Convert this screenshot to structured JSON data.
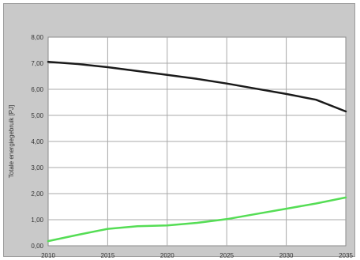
{
  "chart_data": {
    "type": "line",
    "title": "",
    "xlabel": "",
    "ylabel": "Totale energiegebruik [PJ]",
    "x": [
      2010,
      2015,
      2020,
      2025,
      2030,
      2035
    ],
    "x_tick_labels": [
      "2010",
      "2015",
      "2020",
      "2025",
      "2030",
      "2035"
    ],
    "y_tick_labels": [
      "0,00",
      "1,00",
      "2,00",
      "3,00",
      "4,00",
      "5,00",
      "6,00",
      "7,00",
      "8,00"
    ],
    "xlim": [
      2010,
      2035
    ],
    "ylim": [
      0,
      8
    ],
    "grid": true,
    "legend": "none",
    "series": [
      {
        "color": "#1a1a1a",
        "points": [
          [
            2010,
            7.05
          ],
          [
            2012.5,
            6.97
          ],
          [
            2015,
            6.85
          ],
          [
            2017.5,
            6.7
          ],
          [
            2020,
            6.55
          ],
          [
            2022.5,
            6.4
          ],
          [
            2025,
            6.22
          ],
          [
            2027.5,
            6.02
          ],
          [
            2030,
            5.82
          ],
          [
            2032.5,
            5.6
          ],
          [
            2035,
            5.15
          ]
        ]
      },
      {
        "color": "#55dd55",
        "points": [
          [
            2010,
            0.18
          ],
          [
            2012.5,
            0.42
          ],
          [
            2015,
            0.65
          ],
          [
            2017.5,
            0.75
          ],
          [
            2020,
            0.78
          ],
          [
            2022.5,
            0.88
          ],
          [
            2025,
            1.02
          ],
          [
            2027.5,
            1.22
          ],
          [
            2030,
            1.42
          ],
          [
            2032.5,
            1.62
          ],
          [
            2035,
            1.85
          ]
        ]
      }
    ]
  },
  "colors": {
    "frame_background": "#c9c9c9",
    "plot_background": "#ffffff",
    "gridline": "#a8a8a8"
  }
}
